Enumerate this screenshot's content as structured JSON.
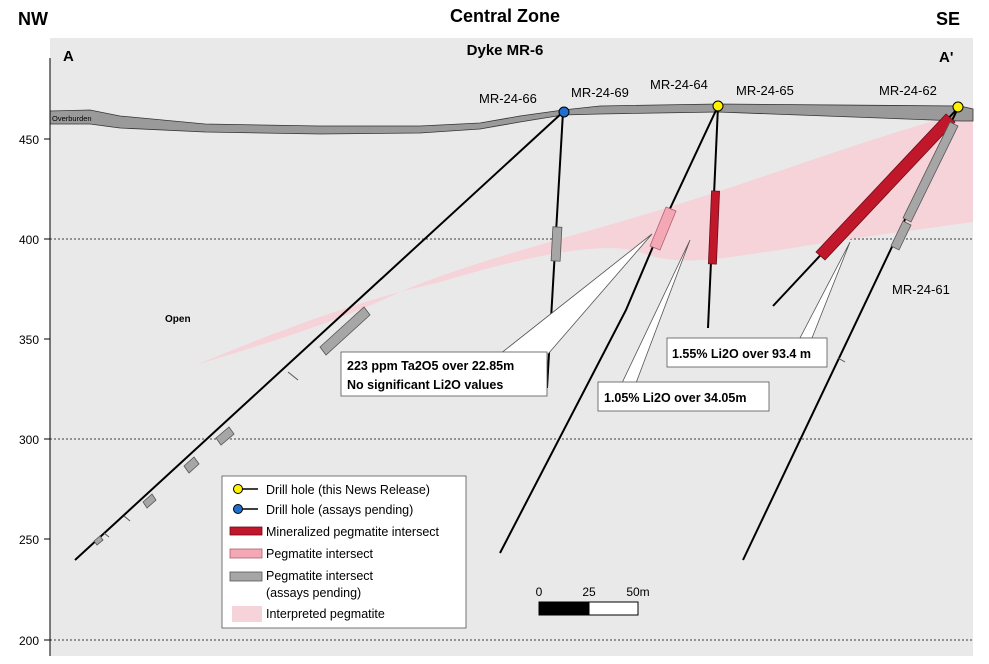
{
  "header": {
    "title": "Central Zone",
    "left_direction": "NW",
    "right_direction": "SE",
    "section_start": "A",
    "section_end": "A'",
    "dyke_label": "Dyke MR-6"
  },
  "axis": {
    "ticks": [
      "450",
      "400",
      "350",
      "300",
      "250",
      "200"
    ]
  },
  "layers": {
    "overburden_label": "Overburden",
    "open_label": "Open"
  },
  "drill_holes": {
    "mr_24_66": "MR-24-66",
    "mr_24_69": "MR-24-69",
    "mr_24_64": "MR-24-64",
    "mr_24_65": "MR-24-65",
    "mr_24_62": "MR-24-62",
    "mr_24_61": "MR-24-61"
  },
  "callouts": {
    "ta2o5_line1": "223 ppm Ta2O5 over 22.85m",
    "ta2o5_line2": "No significant Li2O values",
    "li2o_105": "1.05% Li2O over 34.05m",
    "li2o_155": "1.55% Li2O over 93.4 m"
  },
  "legend": {
    "drill_hole_release": "Drill hole (this News Release)",
    "drill_hole_pending": "Drill hole (assays pending)",
    "mineralized": "Mineralized pegmatite intersect",
    "pegmatite": "Pegmatite intersect",
    "pegmatite_pending_1": "Pegmatite intersect",
    "pegmatite_pending_2": "(assays pending)",
    "interpreted": "Interpreted pegmatite"
  },
  "scale_bar": {
    "label_0": "0",
    "label_25": "25",
    "label_50": "50m"
  },
  "colors": {
    "background": "#e9e9e9",
    "overburden": "#9a9a9a",
    "mineralized": "#c0172b",
    "pegmatite": "#f4a7b4",
    "pending": "#a6a6a6",
    "interpreted": "#f6d2d9",
    "release_marker": "#fff200",
    "pending_marker": "#1f6fd1"
  }
}
